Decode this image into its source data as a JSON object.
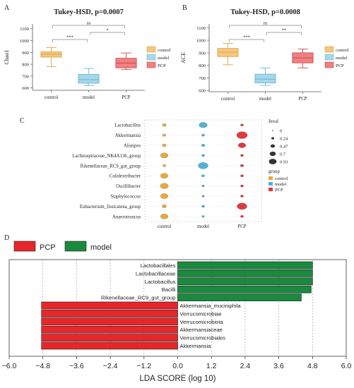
{
  "chart_data": [
    {
      "panel": "A",
      "type": "box",
      "title": "Tukey-HSD,  p=0.0007",
      "ylabel": "Chao1",
      "categories": [
        "control",
        "model",
        "PCP"
      ],
      "yticks": [
        600,
        700,
        800,
        900,
        1000,
        1100
      ],
      "ylim": [
        580,
        1140
      ],
      "boxes": [
        {
          "category": "control",
          "min": 780,
          "q1": 860,
          "median": 885,
          "q3": 905,
          "max": 940
        },
        {
          "category": "model",
          "min": 620,
          "q1": 640,
          "median": 670,
          "q3": 715,
          "max": 765
        },
        {
          "category": "PCP",
          "min": 755,
          "q1": 770,
          "median": 810,
          "q3": 850,
          "max": 895
        }
      ],
      "significance": [
        {
          "from": "control",
          "to": "model",
          "label": "***"
        },
        {
          "from": "model",
          "to": "PCP",
          "label": "*"
        },
        {
          "from": "control",
          "to": "PCP",
          "label": "ns"
        }
      ],
      "legend": [
        "control",
        "model",
        "PCP"
      ],
      "colors": {
        "control": "#f5c77e",
        "model": "#a6d8ea",
        "PCP": "#f08080"
      },
      "edge_colors": {
        "control": "#d9a84a",
        "model": "#6bb7d6",
        "PCP": "#cc4a52"
      }
    },
    {
      "panel": "B",
      "type": "box",
      "title": "Tukey-HSD,  p=0.0008",
      "ylabel": "ACE",
      "categories": [
        "control",
        "model",
        "PCP"
      ],
      "yticks": [
        600,
        700,
        800,
        900,
        1000,
        1100
      ],
      "ylim": [
        590,
        1130
      ],
      "boxes": [
        {
          "category": "control",
          "min": 805,
          "q1": 870,
          "median": 905,
          "q3": 935,
          "max": 975
        },
        {
          "category": "model",
          "min": 640,
          "q1": 660,
          "median": 690,
          "q3": 730,
          "max": 780
        },
        {
          "category": "PCP",
          "min": 780,
          "q1": 820,
          "median": 860,
          "q3": 900,
          "max": 930
        }
      ],
      "significance": [
        {
          "from": "control",
          "to": "model",
          "label": "***"
        },
        {
          "from": "model",
          "to": "PCP",
          "label": "**"
        },
        {
          "from": "control",
          "to": "PCP",
          "label": "ns"
        }
      ],
      "legend": [
        "control",
        "model",
        "PCP"
      ],
      "colors": {
        "control": "#f5c77e",
        "model": "#a6d8ea",
        "PCP": "#f08080"
      },
      "edge_colors": {
        "control": "#d9a84a",
        "model": "#6bb7d6",
        "PCP": "#cc4a52"
      }
    },
    {
      "panel": "C",
      "type": "scatter",
      "groups": [
        "control",
        "model",
        "PCP"
      ],
      "taxa": [
        "Lactobacillus",
        "Akkermansia",
        "Alistipes",
        "Lachnospiraceae_NK4A136_group",
        "Rikenellaceae_RC9_gut_group",
        "Colidextribacter",
        "Oscillibacter",
        "Staphylococcus",
        "Eubacterium_fissicatena_group",
        "Anaerotruncus"
      ],
      "values": [
        [
          0.2,
          0.65,
          0.1
        ],
        [
          0.15,
          0.1,
          0.93
        ],
        [
          0.2,
          0.15,
          0.6
        ],
        [
          0.6,
          0.1,
          0.1
        ],
        [
          0.1,
          0.85,
          0.15
        ],
        [
          0.6,
          0.1,
          0.1
        ],
        [
          0.65,
          0.05,
          0.1
        ],
        [
          0.6,
          0.05,
          0.1
        ],
        [
          0.25,
          0.1,
          0.85
        ],
        [
          0.6,
          0.05,
          0.1
        ]
      ],
      "size_legend_title": "Inval",
      "size_legend": [
        "0",
        "0.24",
        "0.47",
        "0.7",
        "0.93"
      ],
      "group_legend_title": "group",
      "group_legend": [
        "control",
        "model",
        "PCP"
      ],
      "colors": {
        "control": "#e8a93c",
        "model": "#4fb3d9",
        "PCP": "#e03a3e"
      }
    },
    {
      "panel": "D",
      "type": "bar",
      "orientation": "horizontal",
      "legend": [
        "PCP",
        "model"
      ],
      "colors": {
        "PCP": "#e8262a",
        "model": "#1a8a3e"
      },
      "xlabel": "LDA SCORE (log 10)",
      "xlim": [
        -6.0,
        6.0
      ],
      "xticks": [
        "−6.0",
        "−4.8",
        "−3.6",
        "−2.4",
        "−1.2",
        "0.0",
        "1.2",
        "2.4",
        "3.6",
        "4.8",
        "6.0"
      ],
      "tick_values": [
        -6.0,
        -4.8,
        -3.6,
        -2.4,
        -1.2,
        0.0,
        1.2,
        2.4,
        3.6,
        4.8,
        6.0
      ],
      "bars": [
        {
          "label": "Lactobacillales",
          "value": 4.8,
          "group": "model"
        },
        {
          "label": "Lactobacillaceae",
          "value": 4.8,
          "group": "model"
        },
        {
          "label": "Lactobacillus",
          "value": 4.8,
          "group": "model"
        },
        {
          "label": "Bacilli",
          "value": 4.75,
          "group": "model"
        },
        {
          "label": "Rikenellaceae_RC9_gut_group",
          "value": 4.4,
          "group": "model"
        },
        {
          "label": "Akkermansia_muciniphila",
          "value": -4.85,
          "group": "PCP"
        },
        {
          "label": "Verrucomicrobiae",
          "value": -4.85,
          "group": "PCP"
        },
        {
          "label": "Verrucomicrobiota",
          "value": -4.85,
          "group": "PCP"
        },
        {
          "label": "Akkermansiaceae",
          "value": -4.85,
          "group": "PCP"
        },
        {
          "label": "Verrucomicrobiales",
          "value": -4.85,
          "group": "PCP"
        },
        {
          "label": "Akkermansia",
          "value": -4.85,
          "group": "PCP"
        }
      ]
    }
  ]
}
